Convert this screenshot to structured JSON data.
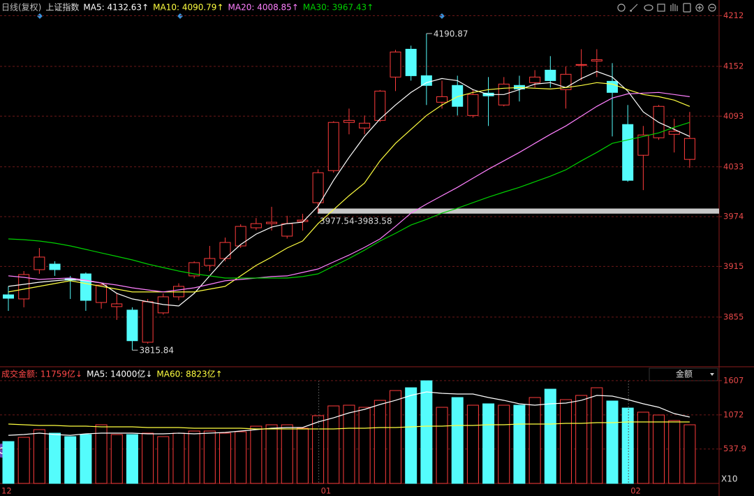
{
  "chart_data": [
    {
      "type": "candlestick",
      "title": "日线(复权)",
      "subtitle": "上证指数",
      "up_color": "#ff3c3c",
      "down_color": "#54fcfc",
      "open": [
        3881.4,
        3876.5,
        3911.2,
        3917.8,
        3900.5,
        3906.2,
        3872.3,
        3867.4,
        3863.3,
        3825.2,
        3860,
        3879,
        3903.8,
        3916.2,
        3924.4,
        3939.3,
        3960.8,
        3965.7,
        3950.9,
        3968.2,
        3990.5,
        4028.5,
        4085.6,
        4079,
        4088,
        4139.3,
        4172.3,
        4140.9,
        4109.5,
        4129.4,
        4093.8,
        4120.3,
        4106.2,
        4129.4,
        4132.7,
        4147.5,
        4124.4,
        4153.3,
        4158.3,
        4134.3,
        4083.1,
        4046.7,
        4067.4,
        4071.5,
        4041.8
      ],
      "close": [
        3877.3,
        3905.4,
        3926.1,
        3911.2,
        3898.8,
        3874.8,
        3893,
        3870.7,
        3827,
        3873.2,
        3879,
        3891.4,
        3919.5,
        3924.4,
        3943.4,
        3962.4,
        3965.7,
        3967.4,
        3965.7,
        3969.9,
        4026,
        4085.6,
        4088,
        4084.7,
        4122.7,
        4169,
        4140.9,
        4129.4,
        4116.1,
        4104.6,
        4118.6,
        4117,
        4131,
        4125.2,
        4139.3,
        4135.1,
        4142.6,
        4154.2,
        4159.9,
        4121.1,
        4017,
        4070.7,
        4104.6,
        4075,
        4066.6
      ],
      "high": [
        3891.4,
        3909.5,
        3936.8,
        3921.1,
        3903.8,
        3907.9,
        3895,
        3883.1,
        3866.6,
        3876.5,
        3883,
        3895,
        3921,
        3939.3,
        3949.2,
        3965,
        3972.3,
        3985.6,
        3975,
        3977.3,
        4030,
        4087,
        4102,
        4093.8,
        4124,
        4171.5,
        4176.5,
        4190.87,
        4135.1,
        4140.9,
        4124.4,
        4139.3,
        4139.3,
        4140.9,
        4147.5,
        4164.1,
        4151.7,
        4172.3,
        4172.3,
        4155.8,
        4106.2,
        4081.4,
        4106.2,
        4090,
        4098
      ],
      "low": [
        3862.4,
        3866.6,
        3906.2,
        3903.8,
        3876.5,
        3862.4,
        3865,
        3851.7,
        3815.84,
        3823.6,
        3858,
        3875,
        3901,
        3909.5,
        3921,
        3937,
        3958,
        3957.5,
        3948,
        3957.5,
        3979,
        4026,
        4071.5,
        4071.5,
        4086,
        4122.7,
        4135.1,
        4106.2,
        4102,
        4093.8,
        4091.3,
        4081.4,
        4104.6,
        4110.4,
        4126.9,
        4126.9,
        4102,
        4135.1,
        4139.3,
        4069,
        4015.3,
        4005.4,
        4064.9,
        4050,
        4031.8
      ],
      "high_labels": [
        null,
        null,
        null,
        null,
        null,
        null,
        null,
        null,
        null,
        null,
        null,
        null,
        null,
        null,
        null,
        null,
        null,
        null,
        null,
        null,
        null,
        null,
        null,
        null,
        null,
        null,
        null,
        "4190.87",
        null,
        null,
        null,
        null,
        null,
        null,
        null,
        null,
        null,
        null,
        null,
        null,
        null,
        null,
        null,
        null,
        null
      ],
      "low_labels": [
        null,
        null,
        null,
        null,
        null,
        null,
        null,
        null,
        "3815.84",
        null,
        null,
        null,
        null,
        null,
        null,
        null,
        null,
        null,
        null,
        null,
        null,
        null,
        null,
        null,
        null,
        null,
        null,
        null,
        null,
        null,
        null,
        null,
        null,
        null,
        null,
        null,
        null,
        null,
        null,
        null,
        null,
        null,
        null,
        null,
        null
      ],
      "series": [
        {
          "name": "MA5: 4132.63↑",
          "color": "#ffffff",
          "values": [
            3891.4,
            3893.8,
            3896.3,
            3898,
            3899.6,
            3898,
            3895.5,
            3883.1,
            3876.5,
            3873.2,
            3869.9,
            3868.2,
            3883.1,
            3903.8,
            3924.4,
            3941,
            3953.3,
            3961.6,
            3965.7,
            3967.4,
            3986.4,
            4017,
            4044.2,
            4069,
            4089.7,
            4106.2,
            4121.1,
            4132.7,
            4137.6,
            4135.1,
            4124.4,
            4118.6,
            4118.6,
            4124.4,
            4131,
            4132.7,
            4126.9,
            4137.6,
            4145.9,
            4139.3,
            4122.7,
            4098,
            4085.6,
            4077.3,
            4069
          ]
        },
        {
          "name": "MA10: 4090.79↑",
          "color": "#ffff40",
          "values": [
            3884.8,
            3888.1,
            3891.4,
            3894.7,
            3898,
            3894.7,
            3891.4,
            3888.1,
            3884.8,
            3884.8,
            3884.8,
            3884.8,
            3884.8,
            3888.1,
            3891.4,
            3903.8,
            3916.2,
            3926.1,
            3936.8,
            3945.1,
            3965.7,
            3982.3,
            3998.8,
            4013.7,
            4040.1,
            4060.8,
            4077.3,
            4093.8,
            4106.2,
            4116.1,
            4121.1,
            4124.4,
            4126.1,
            4126.9,
            4126.1,
            4125.2,
            4126.9,
            4129.4,
            4132.7,
            4131,
            4124.4,
            4118.6,
            4116.1,
            4112,
            4104.6
          ]
        },
        {
          "name": "MA20: 4008.85↑",
          "color": "#ff80ff",
          "values": [
            3903.8,
            3902.1,
            3899.6,
            3900.5,
            3901.3,
            3898.8,
            3895.5,
            3893,
            3889.7,
            3887.2,
            3884.8,
            3887.2,
            3889.7,
            3893.8,
            3898,
            3899.6,
            3901.3,
            3903,
            3903.8,
            3907.9,
            3912,
            3920.3,
            3928.5,
            3937.6,
            3947.6,
            3962.4,
            3978.1,
            3988.9,
            3998.8,
            4008.7,
            4019.5,
            4030.2,
            4040.1,
            4050,
            4060.8,
            4071.5,
            4081.4,
            4093,
            4104.6,
            4114.5,
            4119.4,
            4120.3,
            4121.1,
            4118.6,
            4116.1
          ]
        },
        {
          "name": "MA30: 3967.43↑",
          "color": "#00d000",
          "values": [
            3947.6,
            3946.7,
            3945.1,
            3942.6,
            3939.3,
            3935.2,
            3931,
            3926.9,
            3922.8,
            3917.8,
            3913.7,
            3909.5,
            3906.2,
            3903.8,
            3901.3,
            3901.3,
            3901.3,
            3901.3,
            3901.3,
            3903,
            3906.2,
            3915.3,
            3924.4,
            3934.3,
            3945.1,
            3954.2,
            3964.1,
            3970.7,
            3978.1,
            3983.9,
            3990.5,
            3997.1,
            4003,
            4008.7,
            4015.3,
            4021.9,
            4029.4,
            4040.1,
            4050,
            4060.8,
            4064.9,
            4069,
            4073.2,
            4079.8,
            4085.6
          ]
        }
      ],
      "bands": [
        {
          "low": 3977.54,
          "high": 3983.58,
          "label": "3977.54-3983.58",
          "color": "#c8c8c8"
        }
      ],
      "ylim": [
        3797,
        4219
      ],
      "yticks": [
        4212,
        4152,
        4093,
        4033,
        3974,
        3915,
        3855
      ],
      "grid": true
    },
    {
      "type": "bar",
      "dropdown": "金额",
      "unit_label": "X10",
      "categories": [
        "12",
        null,
        null,
        null,
        null,
        null,
        null,
        null,
        null,
        null,
        null,
        null,
        null,
        null,
        null,
        null,
        null,
        null,
        null,
        null,
        "01",
        null,
        null,
        null,
        null,
        null,
        null,
        null,
        null,
        null,
        null,
        null,
        null,
        null,
        null,
        null,
        null,
        null,
        null,
        null,
        "02",
        null,
        null,
        null,
        null
      ],
      "series": [
        {
          "name": "成交金额: 11759亿↓",
          "color": "#ff4848",
          "values": [
            655,
            721,
            841,
            786,
            732,
            764,
            917,
            764,
            764,
            786,
            732,
            786,
            819,
            819,
            786,
            808,
            895,
            917,
            917,
            863,
            1059,
            1212,
            1223,
            1190,
            1299,
            1452,
            1496,
            1605,
            1190,
            1343,
            1223,
            1245,
            1223,
            1223,
            1343,
            1474,
            1310,
            1376,
            1496,
            1289,
            1179,
            1114,
            1070,
            983,
            917
          ]
        },
        {
          "name": "MA5: 14000亿↓",
          "color": "#ffffff",
          "type": "line",
          "values": [
            753,
            764,
            786,
            764,
            753,
            775,
            786,
            786,
            786,
            775,
            775,
            786,
            775,
            786,
            797,
            819,
            841,
            863,
            874,
            874,
            961,
            1026,
            1103,
            1158,
            1234,
            1299,
            1376,
            1431,
            1409,
            1398,
            1398,
            1343,
            1299,
            1245,
            1223,
            1245,
            1256,
            1299,
            1376,
            1365,
            1310,
            1245,
            1190,
            1092,
            1037
          ]
        },
        {
          "name": "MA60: 8823亿↑",
          "color": "#ffff40",
          "type": "line",
          "values": [
            928,
            917,
            906,
            906,
            895,
            895,
            885,
            885,
            885,
            874,
            874,
            874,
            863,
            863,
            863,
            863,
            852,
            852,
            852,
            852,
            852,
            852,
            863,
            863,
            874,
            874,
            885,
            895,
            895,
            906,
            906,
            917,
            917,
            928,
            928,
            928,
            939,
            939,
            950,
            950,
            961,
            961,
            961,
            961,
            961
          ]
        }
      ],
      "ylim": [
        0,
        1660
      ],
      "yticks": [
        1607,
        1072,
        537.9
      ],
      "grid": true
    }
  ]
}
